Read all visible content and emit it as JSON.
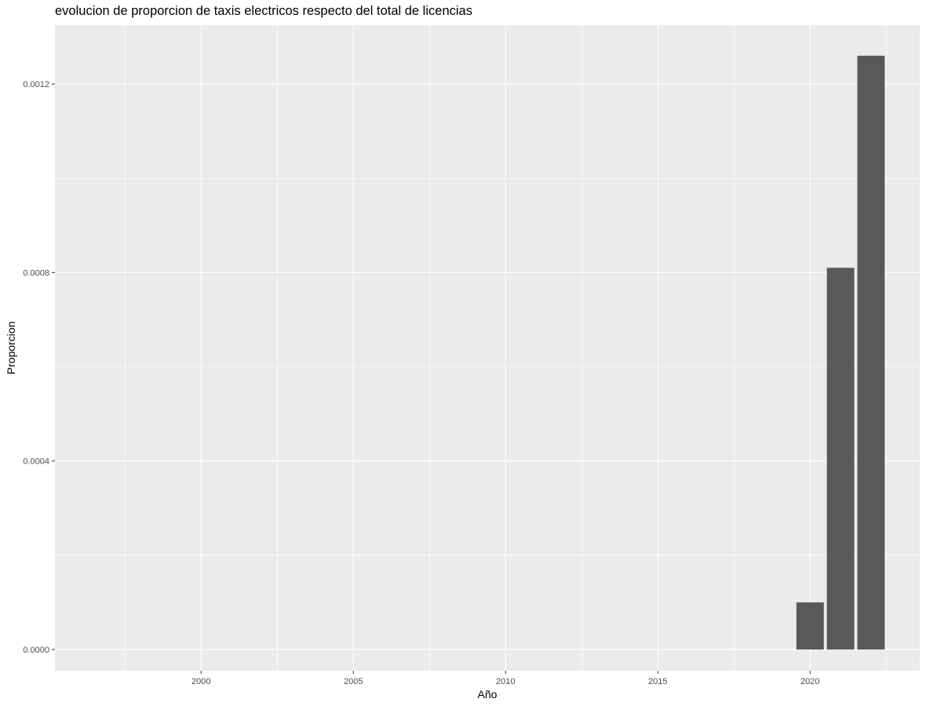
{
  "chart_data": {
    "type": "bar",
    "title": "evolucion de proporcion de taxis electricos respecto del total de licencias",
    "xlabel": "Año",
    "ylabel": "Proporcion",
    "x": [
      2020,
      2021,
      2022
    ],
    "values": [
      0.0001,
      0.00081,
      0.00126
    ],
    "xlim": [
      1995.2,
      2023.6
    ],
    "ylim": [
      -4.5e-05,
      0.001325
    ],
    "x_ticks": [
      2000,
      2005,
      2010,
      2015,
      2020
    ],
    "x_tick_labels": [
      "2000",
      "2005",
      "2010",
      "2015",
      "2020"
    ],
    "y_ticks": [
      0,
      0.0004,
      0.0008,
      0.0012
    ],
    "y_tick_labels": [
      "0.0000",
      "0.0004",
      "0.0008",
      "0.0012"
    ],
    "bar_width_years": 0.9,
    "grid": true,
    "legend": "none",
    "colors": {
      "bar": "#595959",
      "panel": "#ebebeb",
      "grid": "#ffffff"
    }
  }
}
